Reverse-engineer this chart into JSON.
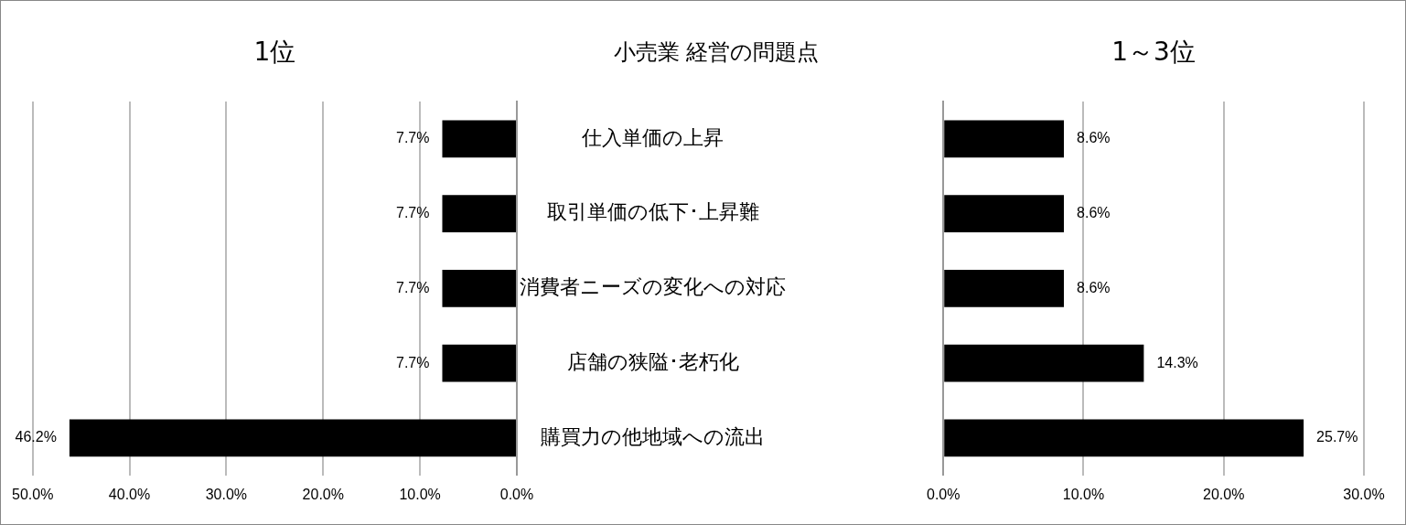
{
  "chart_data": [
    {
      "type": "bar",
      "orientation": "horizontal",
      "title": "1位",
      "annotations": [
        "小売業 経営の問題点"
      ],
      "categories": [
        "仕入単価の上昇",
        "取引単価の低下･上昇難",
        "消費者ニーズの変化への対応",
        "店舗の狭隘･老朽化",
        "購買力の他地域への流出"
      ],
      "values": [
        7.7,
        7.7,
        7.7,
        7.7,
        46.2
      ],
      "value_labels": [
        "7.7%",
        "7.7%",
        "7.7%",
        "7.7%",
        "46.2%"
      ],
      "color": "#000000",
      "xlim": [
        50,
        0
      ],
      "xticks": [
        {
          "value": 50,
          "label": "50.0%"
        },
        {
          "value": 40,
          "label": "40.0%"
        },
        {
          "value": 30,
          "label": "30.0%"
        },
        {
          "value": 20,
          "label": "20.0%"
        },
        {
          "value": 10,
          "label": "10.0%"
        },
        {
          "value": 0,
          "label": "0.0%"
        }
      ],
      "grid": "x",
      "legend": false
    },
    {
      "type": "bar",
      "orientation": "horizontal",
      "title": "1～3位",
      "categories": [
        null,
        null,
        null,
        null,
        null
      ],
      "values": [
        8.6,
        8.6,
        8.6,
        14.3,
        25.7
      ],
      "value_labels": [
        "8.6%",
        "8.6%",
        "8.6%",
        "14.3%",
        "25.7%"
      ],
      "color": "#000000",
      "xlim": [
        0,
        30
      ],
      "xticks": [
        {
          "value": 0,
          "label": "0.0%"
        },
        {
          "value": 10,
          "label": "10.0%"
        },
        {
          "value": 20,
          "label": "20.0%"
        },
        {
          "value": 30,
          "label": "30.0%"
        }
      ],
      "grid": "x",
      "legend": false,
      "tick_labels": "x"
    }
  ]
}
